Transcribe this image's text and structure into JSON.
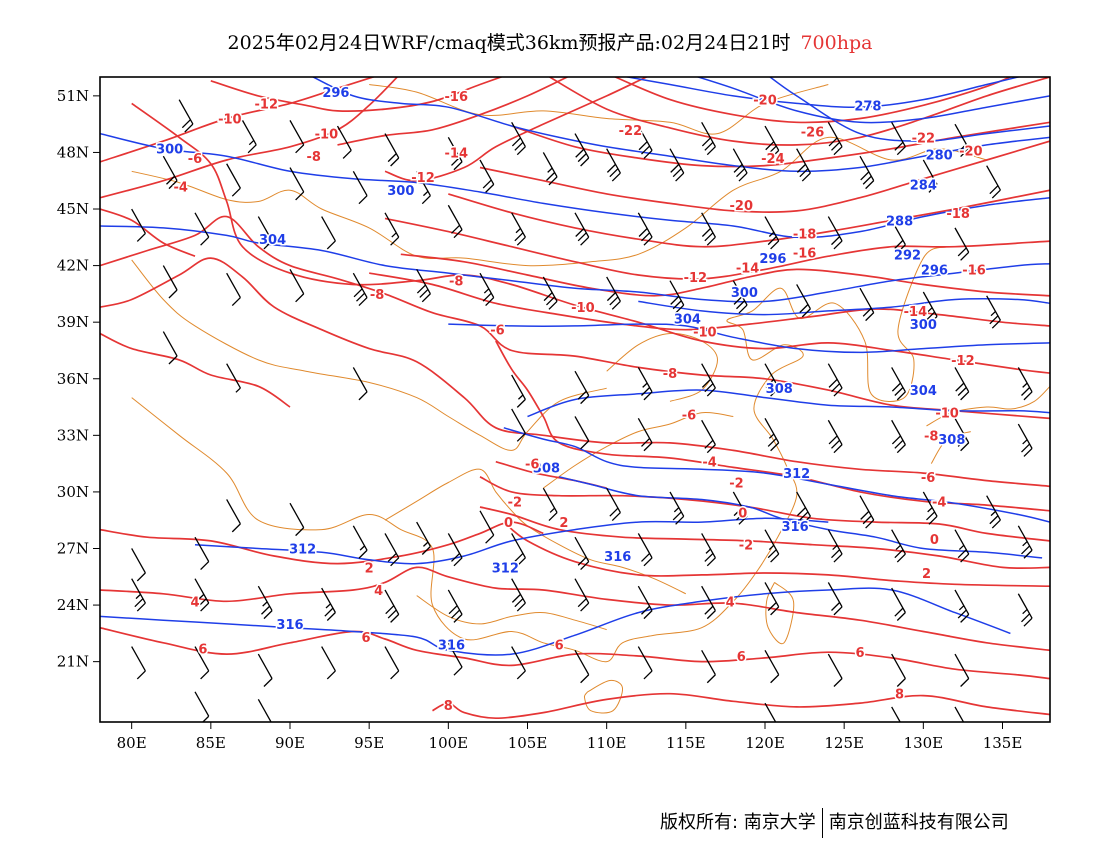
{
  "title": {
    "main": "2025年02月24日WRF/cmaq模式36km预报产品:02月24日21时",
    "level": "700hpa"
  },
  "colors": {
    "temperature": "#e53535",
    "height": "#1f3ee8",
    "coastline": "#e08a2e",
    "barb": "#000000",
    "frame": "#000000"
  },
  "axes": {
    "lon_labels": [
      "80E",
      "85E",
      "90E",
      "95E",
      "100E",
      "105E",
      "110E",
      "115E",
      "120E",
      "125E",
      "130E",
      "135E"
    ],
    "lat_labels": [
      "51N",
      "48N",
      "45N",
      "42N",
      "39N",
      "36N",
      "33N",
      "30N",
      "27N",
      "24N",
      "21N"
    ],
    "lon_range": [
      78,
      138
    ],
    "lat_range": [
      17.8,
      52
    ]
  },
  "chart_data": {
    "type": "contour-map",
    "height_isolines_dagpm": [
      "278",
      "280",
      "284",
      "288",
      "292",
      "296",
      "300",
      "304",
      "308",
      "312",
      "316"
    ],
    "temperature_isolines_C": [
      "-26",
      "-24",
      "-22",
      "-20",
      "-18",
      "-16",
      "-14",
      "-12",
      "-10",
      "-8",
      "-6",
      "-4",
      "-2",
      "0",
      "2",
      "4",
      "6",
      "8"
    ],
    "height_labels": [
      {
        "text": "296",
        "lon": 92.9,
        "lat": 51.2
      },
      {
        "text": "300",
        "lon": 82.4,
        "lat": 48.2
      },
      {
        "text": "300",
        "lon": 97.0,
        "lat": 46.0
      },
      {
        "text": "304",
        "lon": 88.9,
        "lat": 43.4
      },
      {
        "text": "278",
        "lon": 126.5,
        "lat": 50.5
      },
      {
        "text": "280",
        "lon": 131.0,
        "lat": 47.9
      },
      {
        "text": "284",
        "lon": 130.0,
        "lat": 46.3
      },
      {
        "text": "288",
        "lon": 128.5,
        "lat": 44.4
      },
      {
        "text": "292",
        "lon": 129.0,
        "lat": 42.6
      },
      {
        "text": "296",
        "lon": 120.5,
        "lat": 42.4
      },
      {
        "text": "296",
        "lon": 130.7,
        "lat": 41.8
      },
      {
        "text": "300",
        "lon": 118.7,
        "lat": 40.6
      },
      {
        "text": "300",
        "lon": 130.0,
        "lat": 38.9
      },
      {
        "text": "304",
        "lon": 115.1,
        "lat": 39.2
      },
      {
        "text": "304",
        "lon": 130.0,
        "lat": 35.4
      },
      {
        "text": "308",
        "lon": 120.9,
        "lat": 35.5
      },
      {
        "text": "308",
        "lon": 131.8,
        "lat": 32.8
      },
      {
        "text": "308",
        "lon": 106.2,
        "lat": 31.3
      },
      {
        "text": "312",
        "lon": 122.0,
        "lat": 31.0
      },
      {
        "text": "312",
        "lon": 90.8,
        "lat": 27.0
      },
      {
        "text": "312",
        "lon": 103.6,
        "lat": 26.0
      },
      {
        "text": "316",
        "lon": 121.9,
        "lat": 28.2
      },
      {
        "text": "316",
        "lon": 110.7,
        "lat": 26.6
      },
      {
        "text": "316",
        "lon": 90.0,
        "lat": 23.0
      },
      {
        "text": "316",
        "lon": 100.2,
        "lat": 21.9
      }
    ],
    "temperature_labels": [
      {
        "text": "-12",
        "lon": 88.5,
        "lat": 50.6
      },
      {
        "text": "-10",
        "lon": 86.2,
        "lat": 49.8
      },
      {
        "text": "-10",
        "lon": 92.3,
        "lat": 49.0
      },
      {
        "text": "-16",
        "lon": 100.5,
        "lat": 51.0
      },
      {
        "text": "-8",
        "lon": 91.5,
        "lat": 47.8
      },
      {
        "text": "-6",
        "lon": 84.0,
        "lat": 47.7
      },
      {
        "text": "-14",
        "lon": 100.5,
        "lat": 48.0
      },
      {
        "text": "-12",
        "lon": 98.4,
        "lat": 46.7
      },
      {
        "text": "-4",
        "lon": 83.1,
        "lat": 46.2
      },
      {
        "text": "-20",
        "lon": 120.0,
        "lat": 50.8
      },
      {
        "text": "-22",
        "lon": 111.5,
        "lat": 49.2
      },
      {
        "text": "-26",
        "lon": 123.0,
        "lat": 49.1
      },
      {
        "text": "-24",
        "lon": 120.5,
        "lat": 47.7
      },
      {
        "text": "-22",
        "lon": 130.0,
        "lat": 48.8
      },
      {
        "text": "-20",
        "lon": 133.0,
        "lat": 48.1
      },
      {
        "text": "-20",
        "lon": 118.5,
        "lat": 45.2
      },
      {
        "text": "-18",
        "lon": 122.5,
        "lat": 43.7
      },
      {
        "text": "-18",
        "lon": 132.2,
        "lat": 44.8
      },
      {
        "text": "-16",
        "lon": 122.5,
        "lat": 42.7
      },
      {
        "text": "-16",
        "lon": 133.2,
        "lat": 41.8
      },
      {
        "text": "-14",
        "lon": 118.9,
        "lat": 41.9
      },
      {
        "text": "-12",
        "lon": 115.6,
        "lat": 41.4
      },
      {
        "text": "-14",
        "lon": 129.5,
        "lat": 39.6
      },
      {
        "text": "-12",
        "lon": 132.5,
        "lat": 37.0
      },
      {
        "text": "-8",
        "lon": 100.5,
        "lat": 41.2
      },
      {
        "text": "-8",
        "lon": 95.5,
        "lat": 40.5
      },
      {
        "text": "-10",
        "lon": 108.5,
        "lat": 39.8
      },
      {
        "text": "-10",
        "lon": 116.2,
        "lat": 38.5
      },
      {
        "text": "-6",
        "lon": 103.1,
        "lat": 38.6
      },
      {
        "text": "-8",
        "lon": 114.0,
        "lat": 36.3
      },
      {
        "text": "-6",
        "lon": 115.2,
        "lat": 34.1
      },
      {
        "text": "-10",
        "lon": 131.5,
        "lat": 34.2
      },
      {
        "text": "-8",
        "lon": 130.5,
        "lat": 33.0
      },
      {
        "text": "-6",
        "lon": 105.3,
        "lat": 31.5
      },
      {
        "text": "-4",
        "lon": 116.5,
        "lat": 31.6
      },
      {
        "text": "-6",
        "lon": 130.3,
        "lat": 30.8
      },
      {
        "text": "-2",
        "lon": 118.2,
        "lat": 30.5
      },
      {
        "text": "-4",
        "lon": 131.0,
        "lat": 29.5
      },
      {
        "text": "-2",
        "lon": 104.2,
        "lat": 29.5
      },
      {
        "text": "0",
        "lon": 103.8,
        "lat": 28.4
      },
      {
        "text": "2",
        "lon": 107.3,
        "lat": 28.4
      },
      {
        "text": "0",
        "lon": 118.6,
        "lat": 28.9
      },
      {
        "text": "-2",
        "lon": 118.8,
        "lat": 27.2
      },
      {
        "text": "0",
        "lon": 130.7,
        "lat": 27.5
      },
      {
        "text": "2",
        "lon": 95.0,
        "lat": 26.0
      },
      {
        "text": "2",
        "lon": 130.2,
        "lat": 25.7
      },
      {
        "text": "4",
        "lon": 95.6,
        "lat": 24.8
      },
      {
        "text": "4",
        "lon": 84.0,
        "lat": 24.2
      },
      {
        "text": "4",
        "lon": 117.8,
        "lat": 24.2
      },
      {
        "text": "6",
        "lon": 94.8,
        "lat": 22.3
      },
      {
        "text": "6",
        "lon": 84.5,
        "lat": 21.7
      },
      {
        "text": "6",
        "lon": 107.0,
        "lat": 21.9
      },
      {
        "text": "6",
        "lon": 118.5,
        "lat": 21.3
      },
      {
        "text": "6",
        "lon": 126.0,
        "lat": 21.5
      },
      {
        "text": "8",
        "lon": 100.0,
        "lat": 18.7
      },
      {
        "text": "8",
        "lon": 128.5,
        "lat": 19.3
      }
    ]
  },
  "footer": {
    "left": "版权所有: 南京大学",
    "right": "南京创蓝科技有限公司"
  }
}
